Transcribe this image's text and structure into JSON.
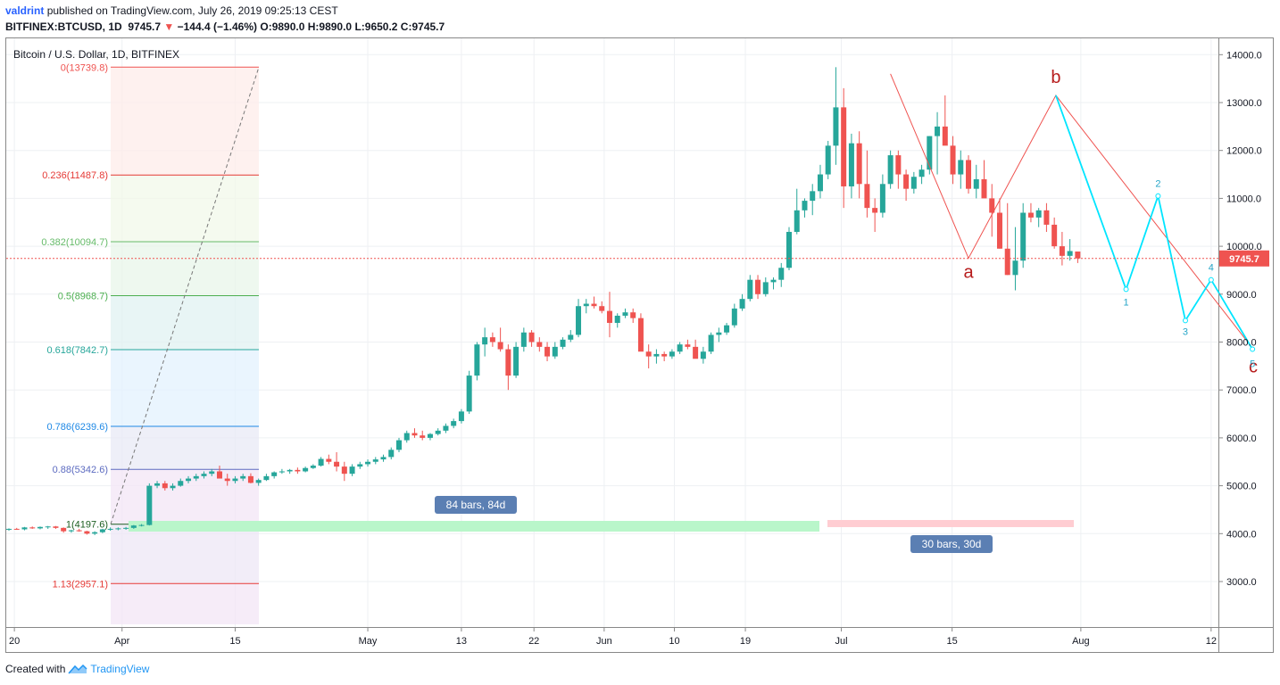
{
  "header": {
    "user": "valdrint",
    "published": "published on TradingView.com, July 26, 2019 09:25:13 CEST",
    "symbol": "BITFINEX:BTCUSD, 1D",
    "last": "9745.7",
    "arrow": "▼",
    "change": "−144.4 (−1.46%)",
    "ohlc": "O:9890.0 H:9890.0 L:9650.2 C:9745.7"
  },
  "footer": {
    "created": "Created with",
    "brand": "TradingView"
  },
  "chart_data": {
    "type": "candlestick",
    "title": "Bitcoin / U.S. Dollar, 1D, BITFINEX",
    "y_ticks": [
      3000,
      4000,
      5000,
      6000,
      7000,
      8000,
      9000,
      10000,
      11000,
      12000,
      13000,
      14000
    ],
    "y_tick_labels": [
      "3000.0",
      "4000.0",
      "5000.0",
      "6000.0",
      "7000.0",
      "8000.0",
      "9000.0",
      "10000.0",
      "11000.0",
      "12000.0",
      "13000.0",
      "14000.0"
    ],
    "x_tick_labels": [
      "20",
      "Apr",
      "15",
      "May",
      "13",
      "22",
      "Jun",
      "10",
      "19",
      "Jul",
      "15",
      "Aug",
      "12"
    ],
    "last_price_label": "9745.7",
    "last_price": 9745.7,
    "candles_ohlc": [
      [
        4085,
        4110,
        4060,
        4100
      ],
      [
        4100,
        4120,
        4080,
        4090
      ],
      [
        4090,
        4140,
        4070,
        4130
      ],
      [
        4130,
        4150,
        4100,
        4110
      ],
      [
        4110,
        4150,
        4090,
        4140
      ],
      [
        4140,
        4160,
        4100,
        4150
      ],
      [
        4150,
        4160,
        4100,
        4120
      ],
      [
        4120,
        4130,
        4020,
        4050
      ],
      [
        4050,
        4080,
        4020,
        4070
      ],
      [
        4070,
        4100,
        4040,
        4050
      ],
      [
        4050,
        4060,
        3980,
        4000
      ],
      [
        4000,
        4050,
        3970,
        4030
      ],
      [
        4030,
        4100,
        4010,
        4090
      ],
      [
        4090,
        4130,
        4060,
        4100
      ],
      [
        4100,
        4130,
        4070,
        4110
      ],
      [
        4110,
        4140,
        4080,
        4120
      ],
      [
        4120,
        4180,
        4100,
        4170
      ],
      [
        4170,
        4200,
        4150,
        4180
      ],
      [
        4180,
        5050,
        4170,
        5000
      ],
      [
        5000,
        5100,
        4950,
        5050
      ],
      [
        5050,
        5100,
        4900,
        4950
      ],
      [
        4950,
        5050,
        4900,
        5000
      ],
      [
        5000,
        5150,
        4980,
        5100
      ],
      [
        5100,
        5200,
        5050,
        5150
      ],
      [
        5150,
        5250,
        5100,
        5200
      ],
      [
        5200,
        5300,
        5150,
        5250
      ],
      [
        5250,
        5350,
        5200,
        5300
      ],
      [
        5300,
        5420,
        5250,
        5150
      ],
      [
        5150,
        5250,
        5000,
        5100
      ],
      [
        5100,
        5200,
        5050,
        5150
      ],
      [
        5150,
        5250,
        5100,
        5200
      ],
      [
        5200,
        5260,
        5050,
        5060
      ],
      [
        5060,
        5150,
        5000,
        5120
      ],
      [
        5120,
        5250,
        5100,
        5200
      ],
      [
        5200,
        5300,
        5150,
        5280
      ],
      [
        5280,
        5350,
        5250,
        5300
      ],
      [
        5300,
        5350,
        5250,
        5330
      ],
      [
        5330,
        5380,
        5250,
        5300
      ],
      [
        5300,
        5400,
        5280,
        5370
      ],
      [
        5370,
        5450,
        5350,
        5420
      ],
      [
        5420,
        5600,
        5400,
        5560
      ],
      [
        5560,
        5650,
        5450,
        5500
      ],
      [
        5500,
        5700,
        5300,
        5400
      ],
      [
        5400,
        5500,
        5100,
        5250
      ],
      [
        5250,
        5450,
        5200,
        5400
      ],
      [
        5400,
        5500,
        5350,
        5450
      ],
      [
        5450,
        5550,
        5400,
        5500
      ],
      [
        5500,
        5600,
        5450,
        5550
      ],
      [
        5550,
        5650,
        5500,
        5600
      ],
      [
        5600,
        5800,
        5550,
        5750
      ],
      [
        5750,
        6000,
        5700,
        5950
      ],
      [
        5950,
        6150,
        5900,
        6100
      ],
      [
        6100,
        6200,
        6000,
        6050
      ],
      [
        6050,
        6150,
        5950,
        6000
      ],
      [
        6000,
        6100,
        5950,
        6080
      ],
      [
        6080,
        6200,
        6050,
        6150
      ],
      [
        6150,
        6300,
        6100,
        6250
      ],
      [
        6250,
        6400,
        6200,
        6350
      ],
      [
        6350,
        6600,
        6300,
        6550
      ],
      [
        6550,
        7400,
        6500,
        7300
      ],
      [
        7300,
        8000,
        7200,
        7950
      ],
      [
        7950,
        8300,
        7700,
        8100
      ],
      [
        8100,
        8200,
        7900,
        8000
      ],
      [
        8000,
        8300,
        7800,
        7850
      ],
      [
        7850,
        7950,
        7000,
        7300
      ],
      [
        7300,
        8000,
        7250,
        7900
      ],
      [
        7900,
        8300,
        7800,
        8200
      ],
      [
        8200,
        8250,
        7900,
        8000
      ],
      [
        8000,
        8100,
        7800,
        7900
      ],
      [
        7900,
        8000,
        7600,
        7700
      ],
      [
        7700,
        8000,
        7650,
        7900
      ],
      [
        7900,
        8100,
        7850,
        8050
      ],
      [
        8050,
        8250,
        8000,
        8150
      ],
      [
        8150,
        8900,
        8100,
        8750
      ],
      [
        8750,
        8900,
        8600,
        8800
      ],
      [
        8800,
        8950,
        8700,
        8750
      ],
      [
        8750,
        8850,
        8600,
        8650
      ],
      [
        8650,
        9050,
        8100,
        8400
      ],
      [
        8400,
        8600,
        8300,
        8550
      ],
      [
        8550,
        8700,
        8500,
        8620
      ],
      [
        8620,
        8700,
        8400,
        8500
      ],
      [
        8500,
        8600,
        8000,
        7800
      ],
      [
        7800,
        7950,
        7450,
        7700
      ],
      [
        7700,
        7850,
        7550,
        7750
      ],
      [
        7750,
        7800,
        7600,
        7700
      ],
      [
        7700,
        7850,
        7650,
        7800
      ],
      [
        7800,
        8000,
        7750,
        7950
      ],
      [
        7950,
        8050,
        7850,
        7900
      ],
      [
        7900,
        8050,
        7700,
        7650
      ],
      [
        7650,
        7900,
        7550,
        7800
      ],
      [
        7800,
        8200,
        7750,
        8150
      ],
      [
        8150,
        8300,
        8000,
        8200
      ],
      [
        8200,
        8400,
        8150,
        8350
      ],
      [
        8350,
        8800,
        8300,
        8700
      ],
      [
        8700,
        9000,
        8650,
        8900
      ],
      [
        8900,
        9400,
        8850,
        9300
      ],
      [
        9300,
        9400,
        8900,
        9000
      ],
      [
        9000,
        9350,
        8950,
        9250
      ],
      [
        9250,
        9350,
        9100,
        9300
      ],
      [
        9300,
        9650,
        9150,
        9550
      ],
      [
        9550,
        10400,
        9500,
        10300
      ],
      [
        10300,
        11200,
        10250,
        10750
      ],
      [
        10750,
        11000,
        10600,
        10950
      ],
      [
        10950,
        11300,
        10650,
        11150
      ],
      [
        11150,
        11700,
        11000,
        11500
      ],
      [
        11500,
        12200,
        11400,
        12100
      ],
      [
        12100,
        13739,
        11700,
        12900
      ],
      [
        12900,
        13300,
        10800,
        11250
      ],
      [
        11250,
        12350,
        11000,
        12150
      ],
      [
        12150,
        12400,
        11000,
        11300
      ],
      [
        11300,
        12000,
        10600,
        10800
      ],
      [
        10800,
        11000,
        10300,
        10700
      ],
      [
        10700,
        11500,
        10600,
        11300
      ],
      [
        11300,
        12000,
        11200,
        11900
      ],
      [
        11900,
        12000,
        11200,
        11500
      ],
      [
        11500,
        11600,
        10950,
        11200
      ],
      [
        11200,
        11550,
        11100,
        11450
      ],
      [
        11450,
        11700,
        11300,
        11600
      ],
      [
        11600,
        12300,
        11500,
        12300
      ],
      [
        12300,
        12800,
        11500,
        12500
      ],
      [
        12500,
        13150,
        12200,
        12100
      ],
      [
        12100,
        12300,
        11300,
        11500
      ],
      [
        11500,
        12000,
        11200,
        11800
      ],
      [
        11800,
        11900,
        11100,
        11200
      ],
      [
        11200,
        11700,
        11000,
        11400
      ],
      [
        11400,
        11800,
        11200,
        11000
      ],
      [
        11000,
        11300,
        10200,
        10700
      ],
      [
        10700,
        11000,
        9950,
        9950
      ],
      [
        9950,
        10900,
        9400,
        9400
      ],
      [
        9400,
        10400,
        9080,
        9700
      ],
      [
        9700,
        10900,
        9550,
        10700
      ],
      [
        10700,
        10900,
        10500,
        10600
      ],
      [
        10600,
        10800,
        10400,
        10750
      ],
      [
        10750,
        10900,
        10300,
        10450
      ],
      [
        10450,
        10600,
        9950,
        10000
      ],
      [
        10000,
        10300,
        9600,
        9800
      ],
      [
        9800,
        10150,
        9700,
        9900
      ],
      [
        9890,
        9890,
        9650,
        9745.7
      ]
    ],
    "fibonacci": [
      {
        "label": "0(13739.8)",
        "value": 13739.8,
        "color": "#ef5350"
      },
      {
        "label": "0.236(11487.8)",
        "value": 11487.8,
        "color": "#e53935"
      },
      {
        "label": "0.382(10094.7)",
        "value": 10094.7,
        "color": "#66bb6a"
      },
      {
        "label": "0.5(8968.7)",
        "value": 8968.7,
        "color": "#4caf50"
      },
      {
        "label": "0.618(7842.7)",
        "value": 7842.7,
        "color": "#26a69a"
      },
      {
        "label": "0.786(6239.6)",
        "value": 6239.6,
        "color": "#1e88e5"
      },
      {
        "label": "0.88(5342.6)",
        "value": 5342.6,
        "color": "#5c6bc0"
      },
      {
        "label": "1(4197.6)",
        "value": 4197.6,
        "color": "#1b5e20"
      },
      {
        "label": "1.13(2957.1)",
        "value": 2957.1,
        "color": "#e53935"
      }
    ],
    "measure_boxes": [
      {
        "label": "84 bars, 84d",
        "color": "#b9f6ca"
      },
      {
        "label": "30 bars, 30d",
        "color": "#ffcdd2"
      }
    ],
    "abc_labels": [
      "a",
      "b",
      "c"
    ],
    "wave_labels": [
      "1",
      "2",
      "3",
      "4",
      "5"
    ],
    "colors": {
      "up": "#26a69a",
      "down": "#ef5350",
      "wave": "#00e5ff",
      "abc": "#b71c1c",
      "last_line": "#ef5350"
    }
  }
}
